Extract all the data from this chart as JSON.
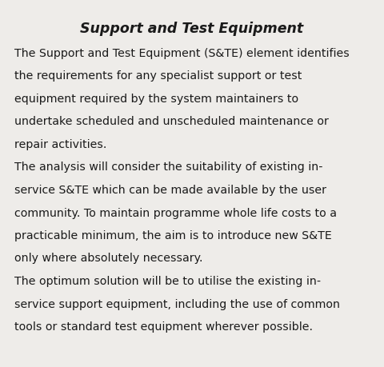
{
  "title": "Support and Test Equipment",
  "background_color": "#eeece9",
  "title_color": "#1a1a1a",
  "body_color": "#1a1a1a",
  "title_fontsize": 12.5,
  "body_fontsize": 10.2,
  "line1": "The Support and Test Equipment (S&TE) element identifies",
  "line2": "the requirements for any specialist support or test",
  "line3": "equipment required by the system maintainers to",
  "line4": "undertake scheduled and unscheduled maintenance or",
  "line5": "repair activities.",
  "line6": "The analysis will consider the suitability of existing in-",
  "line7": "service S&TE which can be made available by the user",
  "line8": "community. To maintain programme whole life costs to a",
  "line9": "practicable minimum, the aim is to introduce new S&TE",
  "line10": "only where absolutely necessary.",
  "line11": "The optimum solution will be to utilise the existing in-",
  "line12": "service support equipment, including the use of common",
  "line13": "tools or standard test equipment wherever possible."
}
